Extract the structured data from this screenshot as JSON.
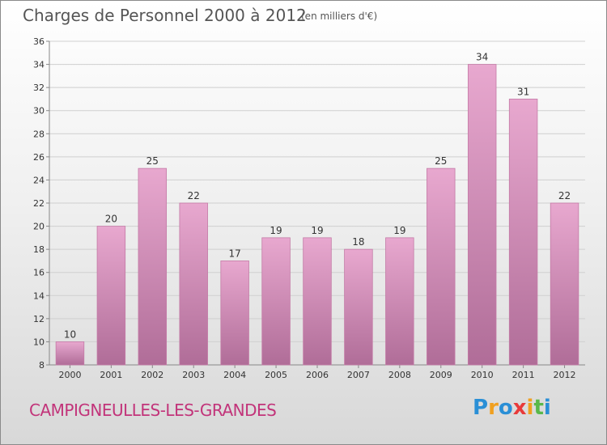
{
  "title": "Charges de Personnel 2000 à 2012",
  "subtitle": "(en milliers d'€)",
  "commune": "CAMPIGNEULLES-LES-GRANDES",
  "logo": {
    "letters": [
      {
        "char": "P",
        "color": "#2a8fd6"
      },
      {
        "char": "r",
        "color": "#f0a020"
      },
      {
        "char": "o",
        "color": "#2a8fd6"
      },
      {
        "char": "x",
        "color": "#e83a3a"
      },
      {
        "char": "i",
        "color": "#f0a020"
      },
      {
        "char": "t",
        "color": "#59b84a"
      },
      {
        "char": "i",
        "color": "#2a8fd6"
      }
    ]
  },
  "chart_data": {
    "type": "bar",
    "title": "Charges de Personnel 2000 à 2012",
    "subtitle": "(en milliers d'€)",
    "categories": [
      "2000",
      "2001",
      "2002",
      "2003",
      "2004",
      "2005",
      "2006",
      "2007",
      "2008",
      "2009",
      "2010",
      "2011",
      "2012"
    ],
    "values": [
      10,
      20,
      25,
      22,
      17,
      19,
      19,
      18,
      19,
      25,
      34,
      31,
      22
    ],
    "ylim": [
      8,
      36
    ],
    "yticks": [
      8,
      10,
      12,
      14,
      16,
      18,
      20,
      22,
      24,
      26,
      28,
      30,
      32,
      34,
      36
    ],
    "grid": true,
    "bar_color": "#d98cb8"
  }
}
